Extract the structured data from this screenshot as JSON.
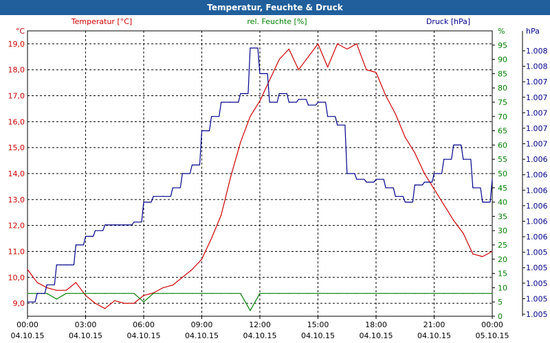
{
  "window": {
    "title": "Temperatur, Feuchte & Druck"
  },
  "colors": {
    "temperature": "#cc0000",
    "humidity": "#008000",
    "pressure": "#00008b",
    "titlebar": "#205f9c",
    "grid": "#000000"
  },
  "chart_data": {
    "type": "line",
    "title": "Temperatur, Feuchte & Druck",
    "xlabel": "",
    "x": [
      "00:00",
      "00:30",
      "01:00",
      "01:30",
      "02:00",
      "02:30",
      "03:00",
      "03:30",
      "04:00",
      "04:30",
      "05:00",
      "05:30",
      "06:00",
      "06:30",
      "07:00",
      "07:30",
      "08:00",
      "08:30",
      "09:00",
      "09:30",
      "10:00",
      "10:30",
      "11:00",
      "11:30",
      "12:00",
      "12:30",
      "13:00",
      "13:30",
      "14:00",
      "14:30",
      "15:00",
      "15:30",
      "16:00",
      "16:30",
      "17:00",
      "17:30",
      "18:00",
      "18:30",
      "19:00",
      "19:30",
      "20:00",
      "20:30",
      "21:00",
      "21:30",
      "22:00",
      "22:30",
      "23:00",
      "23:30",
      "00:00"
    ],
    "x_tick_labels": [
      {
        "time": "00:00",
        "date": "04.10.15"
      },
      {
        "time": "03:00",
        "date": "04.10.15"
      },
      {
        "time": "06:00",
        "date": "04.10.15"
      },
      {
        "time": "09:00",
        "date": "04.10.15"
      },
      {
        "time": "12:00",
        "date": "04.10.15"
      },
      {
        "time": "15:00",
        "date": "04.10.15"
      },
      {
        "time": "18:00",
        "date": "04.10.15"
      },
      {
        "time": "21:00",
        "date": "04.10.15"
      },
      {
        "time": "00:00",
        "date": "05.10.15"
      }
    ],
    "axes": {
      "left": {
        "unit": "°C",
        "ylim": [
          8.5,
          19.5
        ],
        "ticks": [
          "9,0",
          "10,0",
          "11,0",
          "12,0",
          "13,0",
          "14,0",
          "15,0",
          "16,0",
          "17,0",
          "18,0",
          "19,0"
        ]
      },
      "middle": {
        "unit": "%",
        "ylim": [
          0,
          100
        ],
        "ticks": [
          "0",
          "5",
          "10",
          "15",
          "20",
          "25",
          "30",
          "35",
          "40",
          "45",
          "50",
          "55",
          "60",
          "65",
          "70",
          "75",
          "80",
          "85",
          "90",
          "95"
        ]
      },
      "right": {
        "unit": "hPa",
        "ylim": [
          0,
          100
        ],
        "ticks": [
          "1.005",
          "1.005",
          "1.005",
          "1.005",
          "1.005",
          "1.006",
          "1.006",
          "1.006",
          "1.006",
          "1.006",
          "1.006",
          "1.007",
          "1.007",
          "1.007",
          "1.007",
          "1.007",
          "1.008",
          "1.008"
        ]
      }
    },
    "series": [
      {
        "name": "Temperatur [°C]",
        "axis": "left",
        "values": [
          10.3,
          9.8,
          9.6,
          9.5,
          9.5,
          9.8,
          9.3,
          9.0,
          8.8,
          9.1,
          9.0,
          9.0,
          9.3,
          9.4,
          9.6,
          9.7,
          10.0,
          10.3,
          10.7,
          11.5,
          12.4,
          13.9,
          15.2,
          16.2,
          16.8,
          17.6,
          18.4,
          18.8,
          18.0,
          18.5,
          19.0,
          18.1,
          19.0,
          18.8,
          19.0,
          18.0,
          17.9,
          17.0,
          16.3,
          15.4,
          14.8,
          14.0,
          13.4,
          12.8,
          12.2,
          11.7,
          10.9,
          10.8,
          11.0
        ]
      },
      {
        "name": "rel. Feuchte [%]",
        "axis": "middle",
        "values": [
          8,
          8,
          8,
          6,
          8,
          8,
          8,
          8,
          8,
          8,
          8,
          8,
          5,
          8,
          8,
          8,
          8,
          8,
          8,
          8,
          8,
          8,
          8,
          2,
          8,
          8,
          8,
          8,
          8,
          8,
          8,
          8,
          8,
          8,
          8,
          8,
          8,
          8,
          8,
          8,
          8,
          8,
          8,
          8,
          8,
          8,
          8,
          8,
          8
        ]
      },
      {
        "name": "Druck [hPa]",
        "axis": "right",
        "values": [
          5,
          8,
          11,
          18,
          18,
          25,
          28,
          30,
          32,
          32,
          32,
          33,
          40,
          42,
          42,
          45,
          50,
          53,
          65,
          70,
          75,
          75,
          78,
          94,
          85,
          75,
          78,
          75,
          76,
          74,
          75,
          70,
          67,
          50,
          48,
          47,
          48,
          45,
          42,
          40,
          46,
          47,
          50,
          55,
          60,
          55,
          45,
          40,
          48
        ]
      }
    ],
    "legend": [
      "Temperatur [°C]",
      "rel. Feuchte [%]",
      "Druck [hPa]"
    ]
  }
}
